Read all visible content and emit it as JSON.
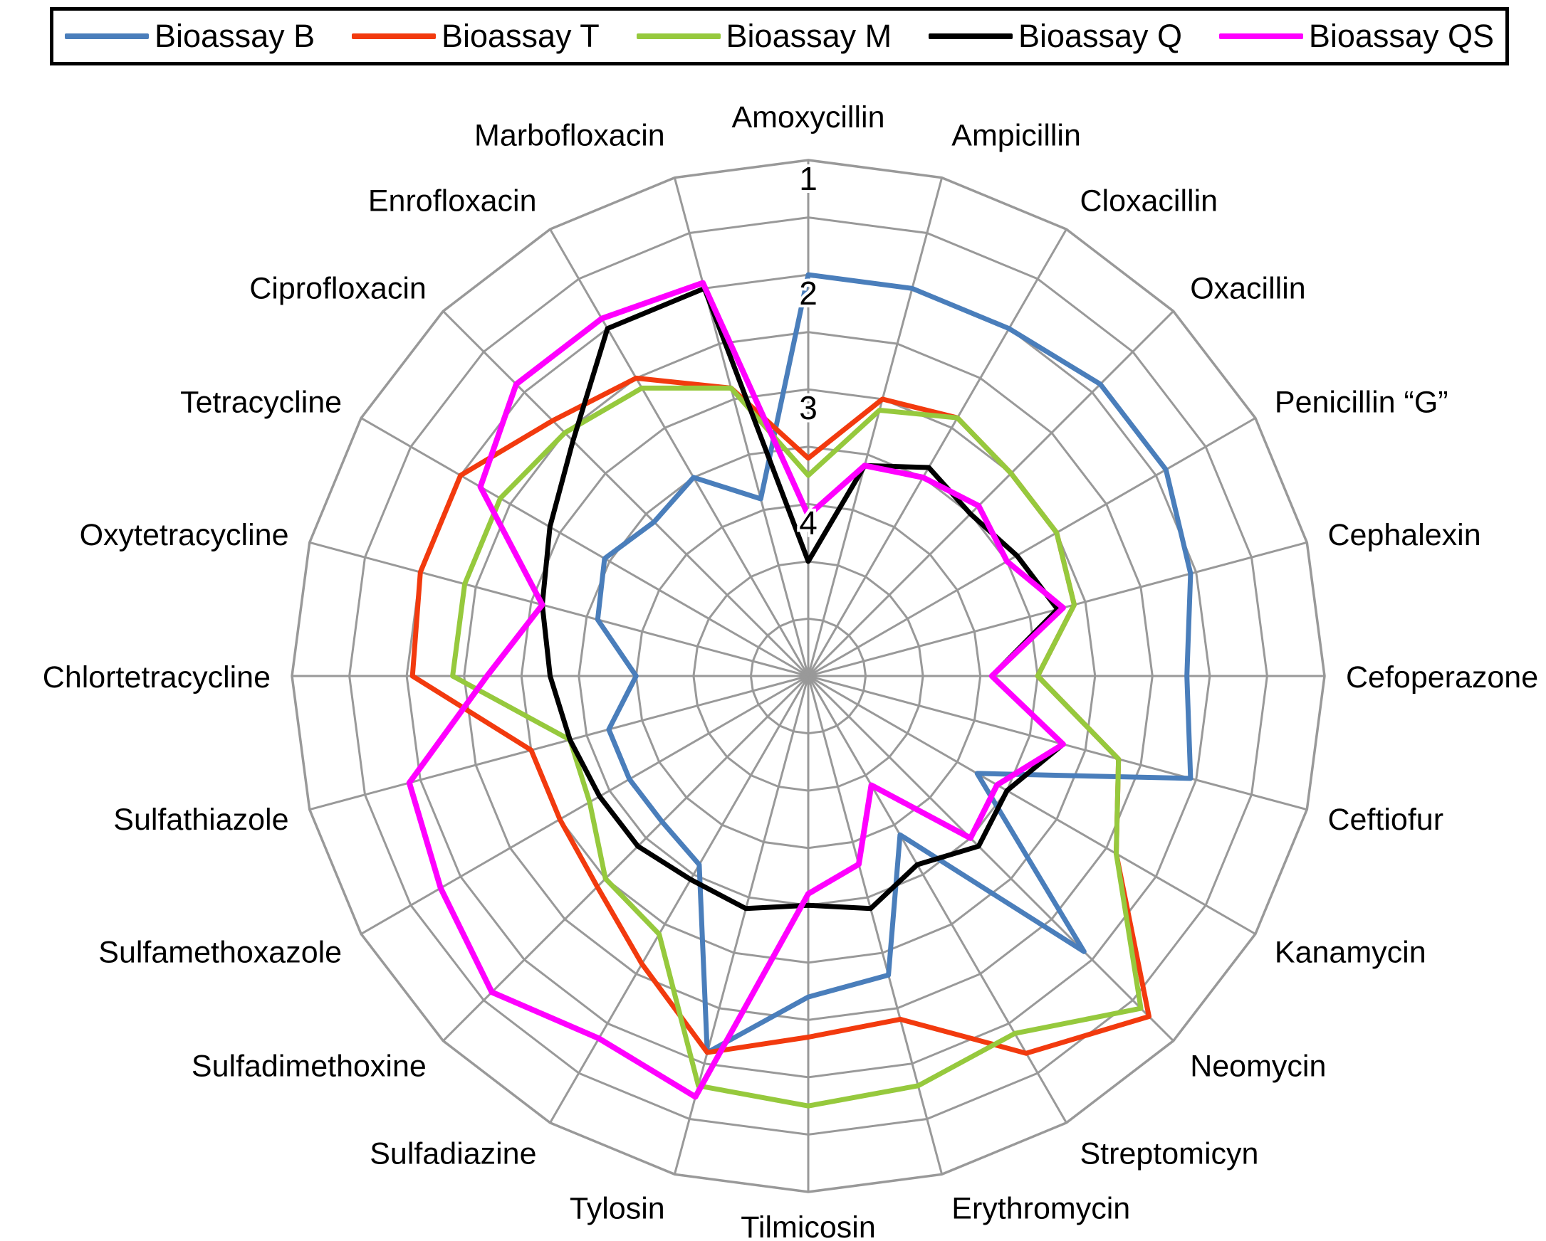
{
  "chart_data": {
    "type": "radar",
    "title": "",
    "legend_position": "top",
    "grid": true,
    "grid_color": "#999999",
    "radial_axis": {
      "tick_labels": [
        "1",
        "2",
        "3",
        "4"
      ],
      "outer_value": 1,
      "inner_value": 5,
      "ring_step": 0.5,
      "direction": "inverted: value 1 at outer ring, values increase toward center"
    },
    "categories": [
      "Amoxycillin",
      "Ampicillin",
      "Cloxacillin",
      "Oxacillin",
      "Penicillin “G”",
      "Cephalexin",
      "Cefoperazone",
      "Ceftiofur",
      "Kanamycin",
      "Neomycin",
      "Streptomicyn",
      "Erythromycin",
      "Tilmicosin",
      "Tylosin",
      "Sulfadiazine",
      "Sulfadimethoxine",
      "Sulfamethoxazole",
      "Sulfathiazole",
      "Chlortetracycline",
      "Oxytetracycline",
      "Tetracycline",
      "Ciprofloxacin",
      "Enrofloxacin",
      "Marbofloxacin"
    ],
    "series": [
      {
        "name": "Bioassay B",
        "color": "#4a7ebb",
        "values": [
          2.0,
          2.0,
          2.0,
          1.9,
          1.9,
          2.05,
          2.2,
          2.05,
          3.8,
          2.1,
          3.9,
          2.8,
          2.7,
          2.1,
          3.6,
          3.7,
          3.7,
          3.7,
          4.0,
          3.6,
          3.45,
          3.6,
          3.5,
          3.9
        ]
      },
      {
        "name": "Bioassay T",
        "color": "#f23a0e",
        "values": [
          3.6,
          3.0,
          2.9,
          3.0,
          3.0,
          3.1,
          3.5,
          2.7,
          2.4,
          1.3,
          1.7,
          2.4,
          2.35,
          2.1,
          2.6,
          2.9,
          3.0,
          3.0,
          2.05,
          2.0,
          2.0,
          2.35,
          2.5,
          2.9
        ]
      },
      {
        "name": "Bioassay M",
        "color": "#96c93d",
        "values": [
          3.75,
          3.1,
          2.9,
          3.0,
          3.0,
          3.1,
          3.5,
          2.7,
          2.4,
          1.4,
          1.9,
          1.8,
          1.75,
          1.8,
          2.9,
          3.0,
          3.3,
          3.35,
          2.4,
          2.4,
          2.4,
          2.5,
          2.6,
          2.9
        ]
      },
      {
        "name": "Bioassay Q",
        "color": "#000000",
        "values": [
          4.5,
          3.6,
          3.4,
          3.5,
          3.4,
          3.25,
          3.9,
          3.2,
          3.5,
          3.4,
          3.6,
          3.4,
          3.5,
          3.4,
          3.45,
          3.4,
          3.4,
          3.35,
          3.25,
          3.1,
          2.9,
          2.6,
          2.0,
          2.0
        ]
      },
      {
        "name": "Bioassay QS",
        "color": "#ff00ff",
        "values": [
          4.1,
          3.6,
          3.5,
          3.4,
          3.5,
          3.2,
          3.9,
          3.2,
          3.6,
          3.5,
          4.4,
          3.8,
          3.6,
          1.7,
          1.85,
          1.6,
          1.8,
          1.9,
          2.7,
          3.1,
          2.2,
          1.9,
          1.9,
          1.95
        ]
      }
    ]
  }
}
